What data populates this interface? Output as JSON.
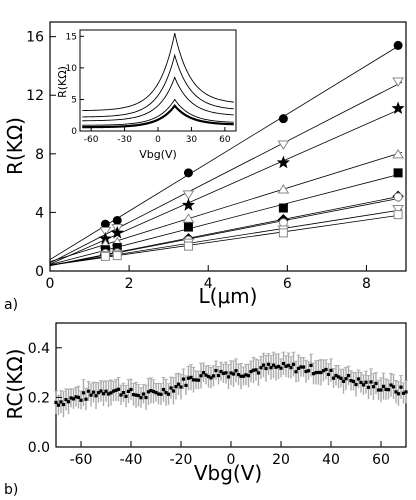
{
  "chart_data": [
    {
      "panel": "a)",
      "type": "scatter",
      "xlabel": "L(μm)",
      "ylabel": "R(KΩ)",
      "xlim": [
        0,
        9
      ],
      "ylim": [
        0,
        17
      ],
      "xticks": [
        "0",
        "2",
        "4",
        "6",
        "8"
      ],
      "yticks": [
        "0",
        "4",
        "8",
        "12",
        "16"
      ],
      "fit_lines": true,
      "x": [
        1.4,
        1.7,
        3.5,
        5.9,
        8.8
      ],
      "series": [
        {
          "marker": "circle",
          "values": [
            3.2,
            3.45,
            6.7,
            10.4,
            15.4
          ]
        },
        {
          "marker": "triangle-down-open",
          "values": [
            2.7,
            2.9,
            5.2,
            8.6,
            12.9
          ]
        },
        {
          "marker": "star",
          "values": [
            2.2,
            2.6,
            4.5,
            7.4,
            11.1
          ]
        },
        {
          "marker": "triangle-up-open",
          "values": [
            1.85,
            2.0,
            3.6,
            5.6,
            8.0
          ]
        },
        {
          "marker": "square",
          "values": [
            1.45,
            1.6,
            3.0,
            4.3,
            6.7
          ]
        },
        {
          "marker": "diamond",
          "values": [
            1.15,
            1.3,
            2.2,
            3.5,
            5.1
          ]
        },
        {
          "marker": "circle-open",
          "values": [
            1.2,
            1.25,
            2.1,
            3.3,
            5.05
          ]
        },
        {
          "marker": "triangle-down-open",
          "values": [
            1.05,
            1.1,
            1.9,
            2.8,
            4.2
          ]
        },
        {
          "marker": "square-open",
          "values": [
            1.0,
            1.05,
            1.7,
            2.6,
            3.85
          ]
        }
      ],
      "inset": {
        "type": "line",
        "xlabel": "Vbg(V)",
        "ylabel": "R(KΩ)",
        "xlim": [
          -70,
          70
        ],
        "ylim": [
          0,
          16
        ],
        "xticks": [
          "-60",
          "-30",
          "0",
          "30",
          "60"
        ],
        "yticks": [
          "0",
          "5",
          "10",
          "15"
        ],
        "peak_x": 15,
        "curves": [
          {
            "peak": 15.5,
            "base_left": 3.2,
            "base_right": 4.3,
            "width": 20
          },
          {
            "peak": 12.0,
            "base_left": 2.2,
            "base_right": 3.3,
            "width": 20
          },
          {
            "peak": 8.5,
            "base_left": 1.6,
            "base_right": 2.4,
            "width": 20
          },
          {
            "peak": 5.0,
            "base_left": 0.9,
            "base_right": 1.3,
            "width": 20
          },
          {
            "peak": 4.0,
            "base_left": 0.6,
            "base_right": 1.0,
            "width": 20,
            "bold": true
          }
        ]
      }
    },
    {
      "panel": "b)",
      "type": "scatter",
      "xlabel": "Vbg(V)",
      "ylabel": "RC(KΩ)",
      "xlim": [
        -70,
        70
      ],
      "ylim": [
        0,
        0.5
      ],
      "xticks": [
        "-60",
        "-40",
        "-20",
        "0",
        "20",
        "40",
        "60"
      ],
      "yticks": [
        "0.0",
        "0.2",
        "0.4"
      ],
      "error_bars": true,
      "error_color": "#aaaaaa",
      "trend": [
        {
          "x": -70,
          "y": 0.18
        },
        {
          "x": -60,
          "y": 0.2
        },
        {
          "x": -50,
          "y": 0.23
        },
        {
          "x": -42,
          "y": 0.22
        },
        {
          "x": -35,
          "y": 0.205
        },
        {
          "x": -25,
          "y": 0.23
        },
        {
          "x": -15,
          "y": 0.28
        },
        {
          "x": -5,
          "y": 0.3
        },
        {
          "x": 5,
          "y": 0.3
        },
        {
          "x": 15,
          "y": 0.32
        },
        {
          "x": 25,
          "y": 0.32
        },
        {
          "x": 35,
          "y": 0.31
        },
        {
          "x": 45,
          "y": 0.28
        },
        {
          "x": 55,
          "y": 0.25
        },
        {
          "x": 62,
          "y": 0.24
        },
        {
          "x": 70,
          "y": 0.22
        }
      ],
      "point_step": 1,
      "error_half": 0.045
    }
  ]
}
